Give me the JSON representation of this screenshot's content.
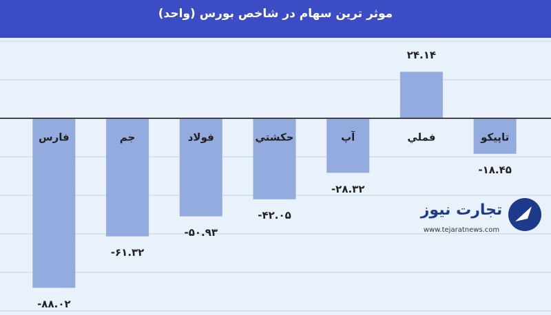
{
  "chart_data": {
    "type": "bar",
    "title": "موثر ترین سهام در شاخص بورس (واحد)",
    "categories": [
      "فارس",
      "جم",
      "فولاد",
      "حکشتي",
      "آپ",
      "فملي",
      "تاپيكو"
    ],
    "values": [
      -88.02,
      -61.32,
      -50.93,
      -42.05,
      -28.32,
      24.14,
      -18.45
    ],
    "value_labels": [
      "-۸۸.۰۲",
      "-۶۱.۳۲",
      "-۵۰.۹۳",
      "-۴۲.۰۵",
      "-۲۸.۳۲",
      "۲۴.۱۴",
      "-۱۸.۴۵"
    ],
    "color": "#94abdf",
    "ylim": [
      -100,
      40
    ],
    "yticks": [
      -100,
      -80,
      -60,
      -40,
      -20,
      0,
      20,
      40
    ],
    "grid": true
  },
  "watermark": {
    "name": "تجارت نیوز",
    "url": "www.tejaratnews.com"
  }
}
